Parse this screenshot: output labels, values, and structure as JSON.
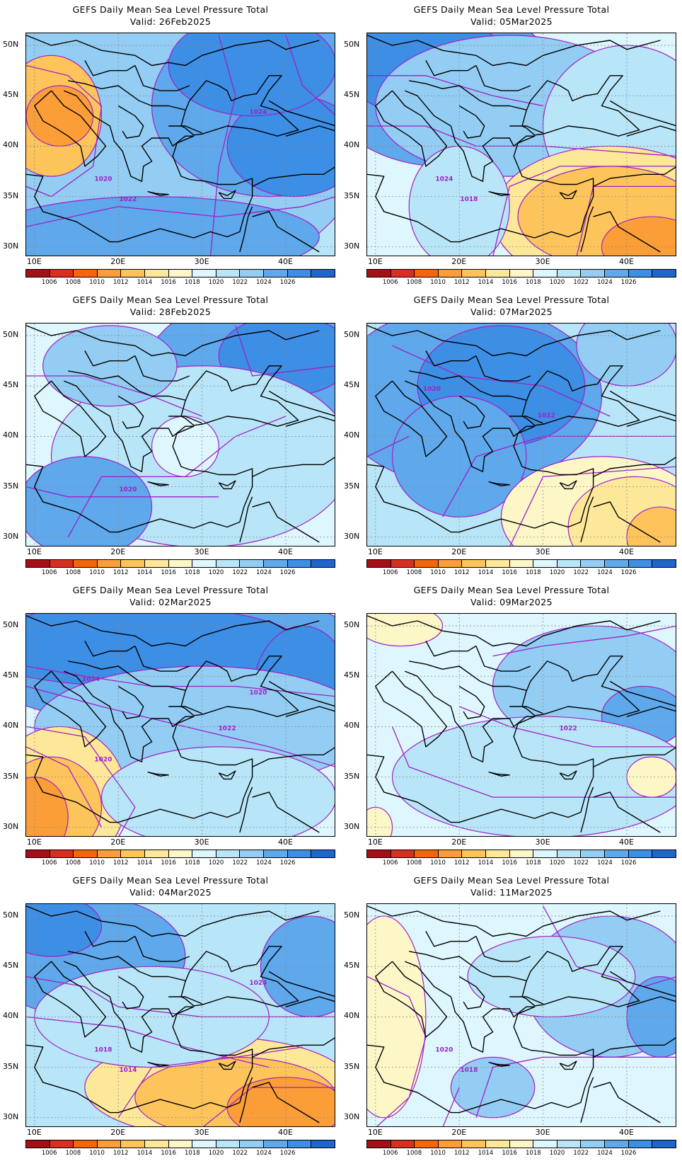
{
  "figure_title": "GEFS Daily Mean Sea Level Pressure Total",
  "lat_labels": [
    "50N",
    "45N",
    "40N",
    "35N",
    "30N"
  ],
  "lon_labels": [
    "10E",
    "20E",
    "30E",
    "40E"
  ],
  "colorbar": {
    "labels": [
      "1006",
      "1008",
      "1010",
      "1012",
      "1014",
      "1016",
      "1018",
      "1020",
      "1022",
      "1024",
      "1026"
    ],
    "colors": [
      "#a50f15",
      "#d7301f",
      "#f5650a",
      "#fb9e38",
      "#fdc45c",
      "#fde89a",
      "#fdf7c8",
      "#def6fd",
      "#b8e6f8",
      "#93cdf3",
      "#5ea8eb",
      "#3d8ee5",
      "#1f66cc"
    ]
  },
  "contour_color": "#a020c8",
  "panels": [
    {
      "valid": "Valid: 26Feb2025",
      "contour_labels": [
        "1024",
        "1020",
        "1022"
      ]
    },
    {
      "valid": "Valid: 05Mar2025",
      "contour_labels": [
        "1024",
        "1018"
      ]
    },
    {
      "valid": "Valid: 28Feb2025",
      "contour_labels": [
        "1020"
      ]
    },
    {
      "valid": "Valid: 07Mar2025",
      "contour_labels": [
        "1022",
        "1020"
      ]
    },
    {
      "valid": "Valid: 02Mar2025",
      "contour_labels": [
        "1024",
        "1022",
        "1020",
        "1020"
      ]
    },
    {
      "valid": "Valid: 09Mar2025",
      "contour_labels": [
        "1022"
      ]
    },
    {
      "valid": "Valid: 04Mar2025",
      "contour_labels": [
        "1024",
        "1018",
        "1014"
      ]
    },
    {
      "valid": "Valid: 11Mar2025",
      "contour_labels": [
        "1020",
        "1018"
      ]
    }
  ]
}
